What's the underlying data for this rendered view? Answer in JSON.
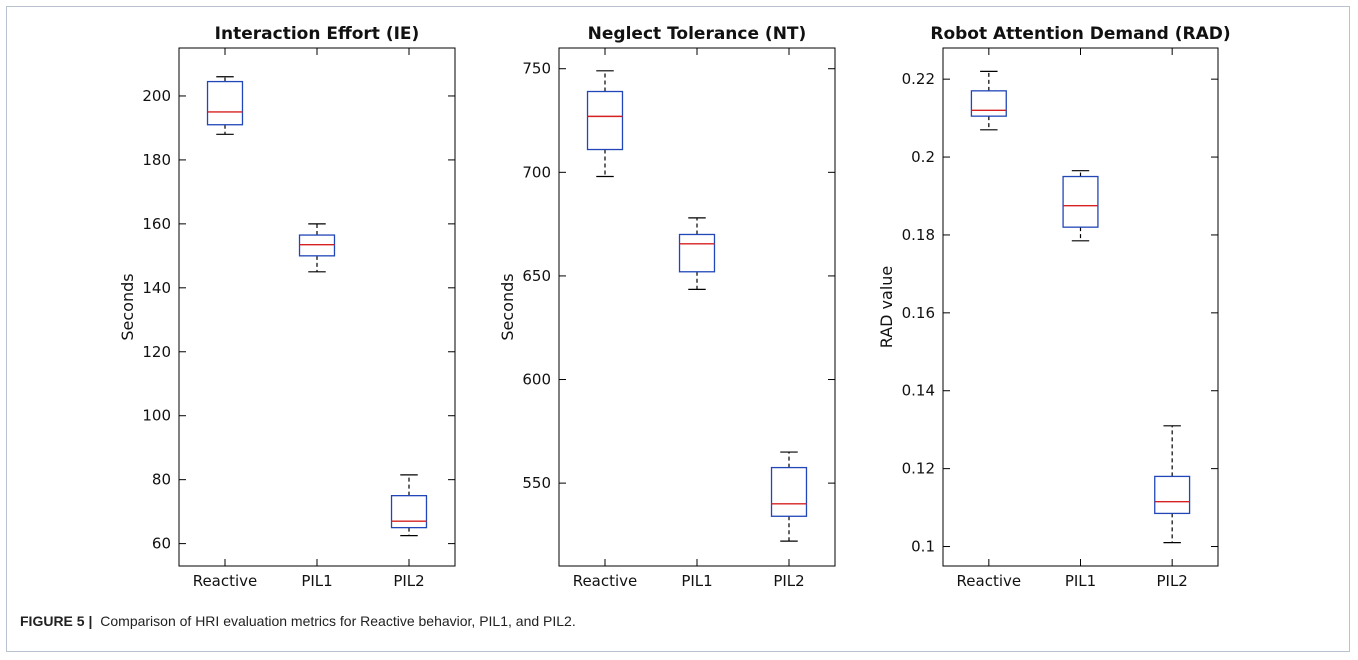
{
  "caption": {
    "label": "FIGURE 5 |",
    "text": "Comparison of HRI evaluation metrics for Reactive behavior, PIL1, and PIL2."
  },
  "colors": {
    "box": "#2046b8",
    "median": "#d62020",
    "whisker": "#000000",
    "axes": "#000000"
  },
  "chart_data": [
    {
      "type": "box",
      "title": "Interaction Effort (IE)",
      "xlabel": "",
      "ylabel": "Seconds",
      "categories": [
        "Reactive",
        "PIL1",
        "PIL2"
      ],
      "ylim": [
        53,
        215
      ],
      "yticks": [
        60,
        80,
        100,
        120,
        140,
        160,
        180,
        200
      ],
      "ytick_labels": [
        "60",
        "80",
        "100",
        "120",
        "140",
        "160",
        "180",
        "200"
      ],
      "boxes": [
        {
          "name": "Reactive",
          "min": 188,
          "q1": 191,
          "median": 195,
          "q3": 204.5,
          "max": 206
        },
        {
          "name": "PIL1",
          "min": 145,
          "q1": 150,
          "median": 153.5,
          "q3": 156.5,
          "max": 160
        },
        {
          "name": "PIL2",
          "min": 62.5,
          "q1": 65,
          "median": 67,
          "q3": 75,
          "max": 81.5
        }
      ],
      "grid": false
    },
    {
      "type": "box",
      "title": "Neglect Tolerance (NT)",
      "xlabel": "",
      "ylabel": "Seconds",
      "categories": [
        "Reactive",
        "PIL1",
        "PIL2"
      ],
      "ylim": [
        510,
        760
      ],
      "yticks": [
        550,
        600,
        650,
        700,
        750
      ],
      "ytick_labels": [
        "550",
        "600",
        "650",
        "700",
        "750"
      ],
      "boxes": [
        {
          "name": "Reactive",
          "min": 698,
          "q1": 711,
          "median": 727,
          "q3": 739,
          "max": 749
        },
        {
          "name": "PIL1",
          "min": 643.5,
          "q1": 652,
          "median": 665.5,
          "q3": 670,
          "max": 678
        },
        {
          "name": "PIL2",
          "min": 522,
          "q1": 534,
          "median": 540,
          "q3": 557.5,
          "max": 565
        }
      ],
      "grid": false
    },
    {
      "type": "box",
      "title": "Robot Attention Demand (RAD)",
      "xlabel": "",
      "ylabel": "RAD value",
      "categories": [
        "Reactive",
        "PIL1",
        "PIL2"
      ],
      "ylim": [
        0.095,
        0.228
      ],
      "yticks": [
        0.1,
        0.12,
        0.14,
        0.16,
        0.18,
        0.2,
        0.22
      ],
      "ytick_labels": [
        "0.1",
        "0.12",
        "0.14",
        "0.16",
        "0.18",
        "0.2",
        "0.22"
      ],
      "boxes": [
        {
          "name": "Reactive",
          "min": 0.207,
          "q1": 0.2105,
          "median": 0.212,
          "q3": 0.217,
          "max": 0.222
        },
        {
          "name": "PIL1",
          "min": 0.1785,
          "q1": 0.182,
          "median": 0.1875,
          "q3": 0.195,
          "max": 0.1965
        },
        {
          "name": "PIL2",
          "min": 0.101,
          "q1": 0.1085,
          "median": 0.1115,
          "q3": 0.118,
          "max": 0.131
        }
      ],
      "grid": false
    }
  ]
}
